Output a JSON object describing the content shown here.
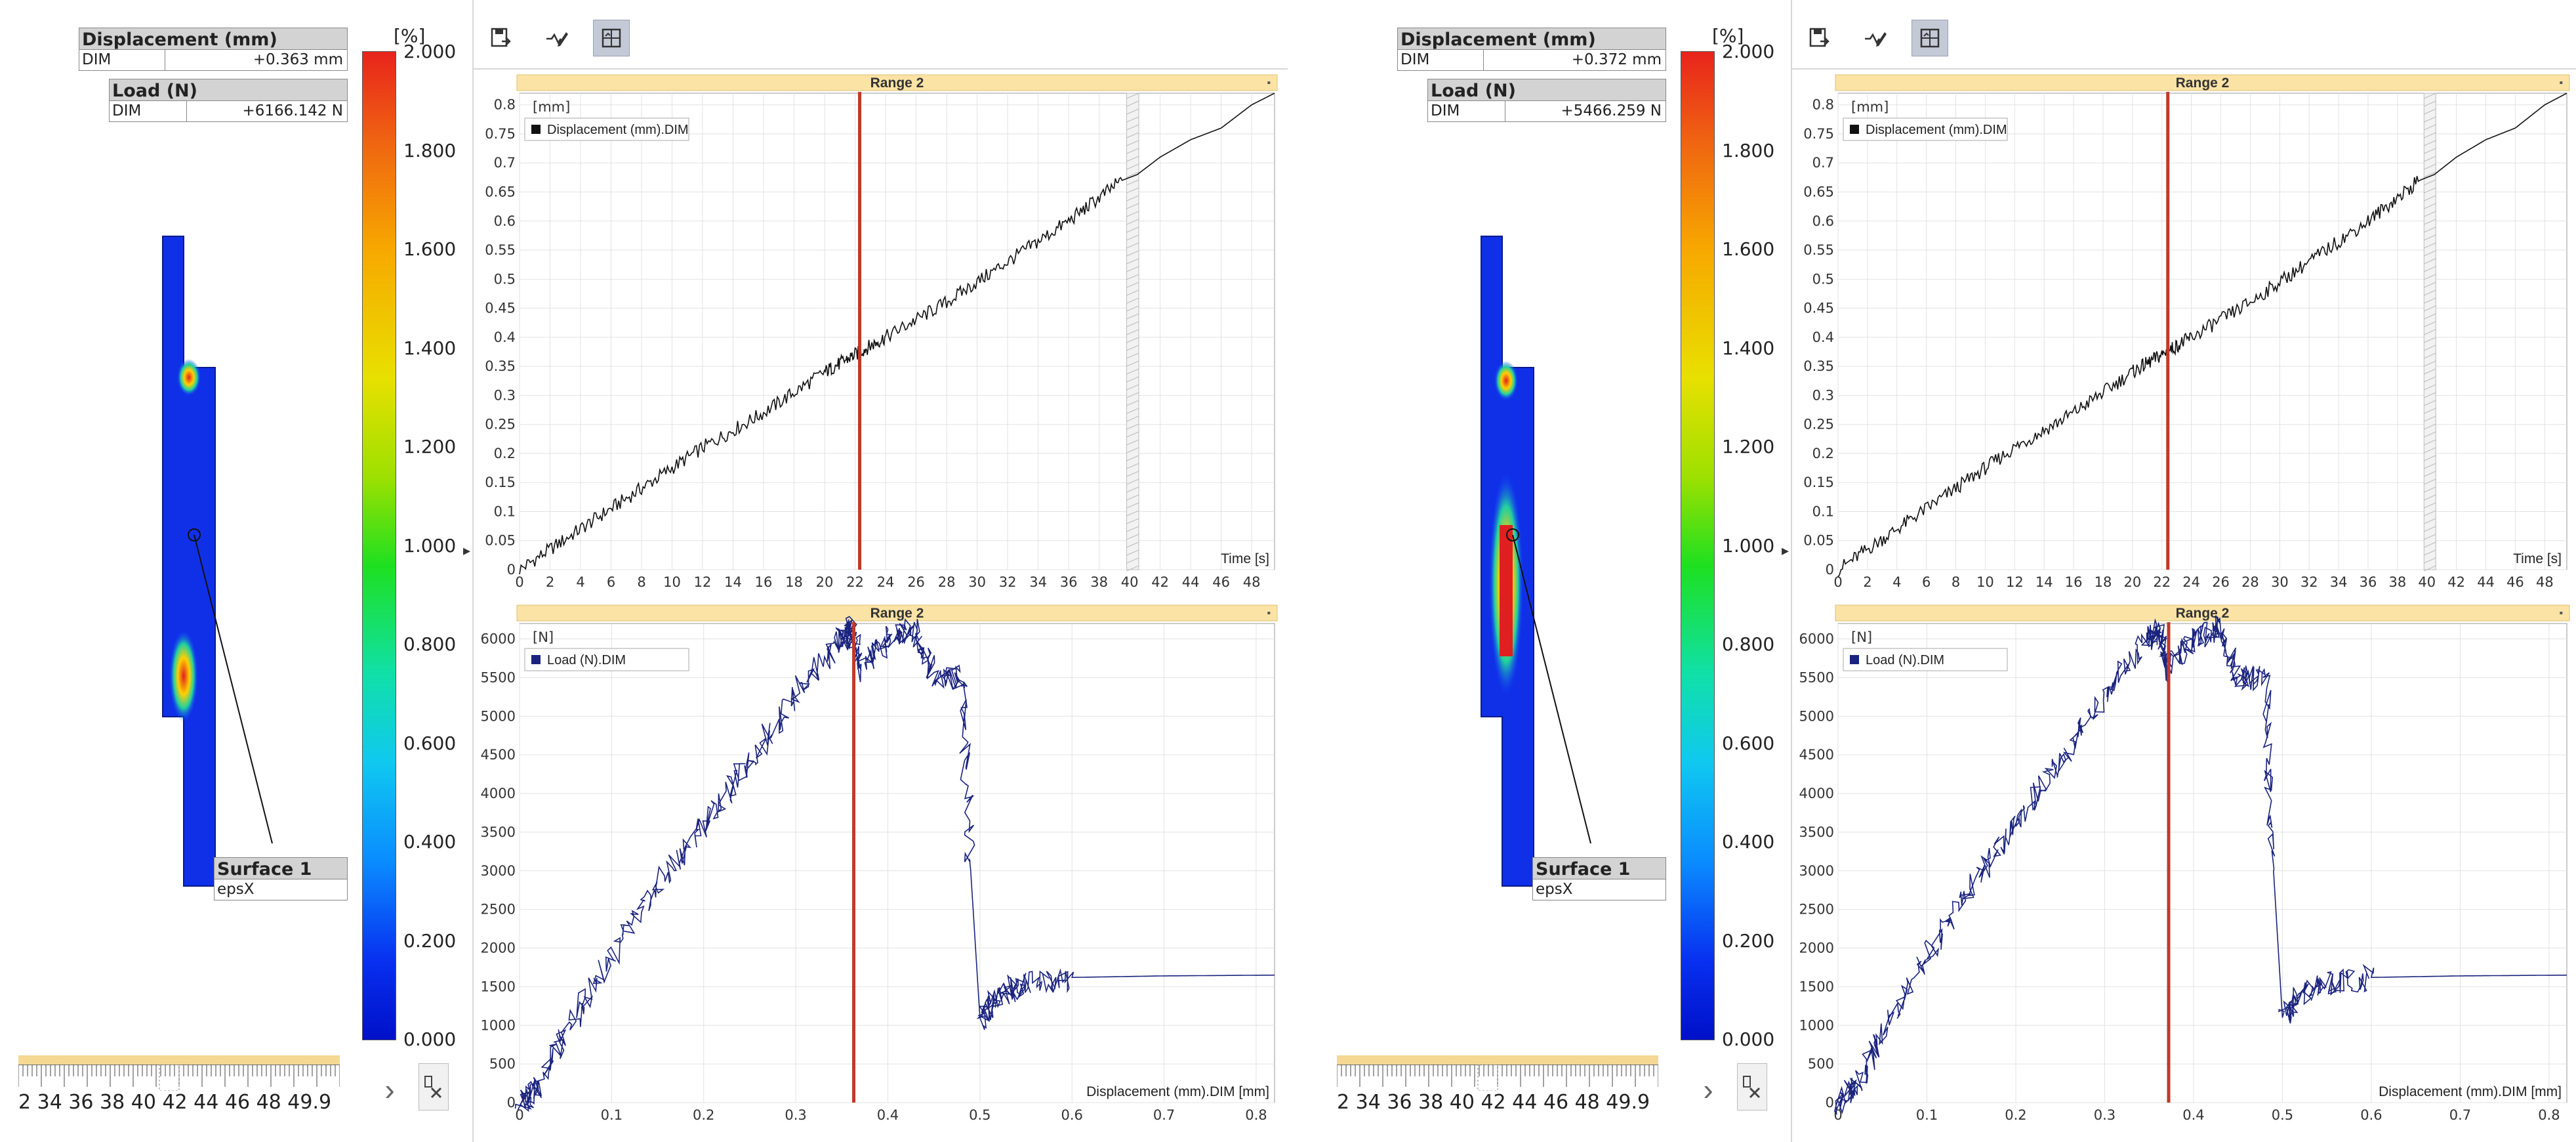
{
  "colorbar": {
    "unit": "[%]",
    "ticks": [
      "2.000",
      "1.800",
      "1.600",
      "1.400",
      "1.200",
      "1.000",
      "0.800",
      "0.600",
      "0.400",
      "0.200",
      "0.000"
    ]
  },
  "labels": {
    "surface_title": "Surface 1",
    "surface_sub": "epsX",
    "key": "DIM"
  },
  "panels": [
    {
      "displacement_title": "Displacement (mm)",
      "displacement_value": "+0.363 mm",
      "load_title": "Load (N)",
      "load_value": "+6166.142 N",
      "cursor_time": 22.3,
      "cursor_disp": 0.363
    },
    {
      "displacement_title": "Displacement (mm)",
      "displacement_value": "+0.372 mm",
      "load_title": "Load (N)",
      "load_value": "+5466.259 N",
      "cursor_time": 22.4,
      "cursor_disp": 0.372
    }
  ],
  "timeline": {
    "ticks_text": "2 34 36 38 40 42 44 46 48 49.9"
  },
  "top_chart": {
    "range_label": "Range 2",
    "unit_label": "[mm]",
    "legend": "Displacement (mm).DIM",
    "x_axis_label": "Time [s]"
  },
  "bottom_chart": {
    "range_label": "Range 2",
    "unit_label": "[N]",
    "legend": "Load (N).DIM",
    "x_axis_label": "Displacement (mm).DIM [mm]"
  },
  "colors": {
    "cursor": "#c0392b",
    "range_bar": "#fbe3a6",
    "disp_line": "#111111",
    "load_line": "#1a237e",
    "legend_load": "#1a237e"
  },
  "chart_data": [
    {
      "type": "line",
      "title": "Range 2",
      "xlabel": "Time [s]",
      "ylabel": "[mm]",
      "xlim": [
        0,
        49.5
      ],
      "ylim": [
        0,
        0.82
      ],
      "x_ticks": [
        0,
        2,
        4,
        6,
        8,
        10,
        12,
        14,
        16,
        18,
        20,
        22,
        24,
        26,
        28,
        30,
        32,
        34,
        36,
        38,
        40,
        42,
        44,
        46,
        48
      ],
      "y_ticks": [
        0,
        0.05,
        0.1,
        0.15,
        0.2,
        0.25,
        0.3,
        0.35,
        0.4,
        0.45,
        0.5,
        0.55,
        0.6,
        0.65,
        0.7,
        0.75,
        0.8
      ],
      "series": [
        {
          "name": "Displacement (mm).DIM",
          "x": [
            0,
            4,
            8,
            12,
            16,
            20,
            22,
            24,
            28,
            32,
            36,
            39.5,
            40.5,
            42,
            44,
            46,
            48,
            49.5
          ],
          "values": [
            0.0,
            0.07,
            0.14,
            0.21,
            0.27,
            0.34,
            0.37,
            0.4,
            0.46,
            0.53,
            0.6,
            0.67,
            0.68,
            0.71,
            0.74,
            0.76,
            0.8,
            0.82
          ]
        }
      ]
    },
    {
      "type": "line",
      "title": "Range 2",
      "xlabel": "Displacement (mm).DIM [mm]",
      "ylabel": "[N]",
      "xlim": [
        0,
        0.82
      ],
      "ylim": [
        0,
        6200
      ],
      "x_ticks": [
        0,
        0.1,
        0.2,
        0.3,
        0.4,
        0.5,
        0.6,
        0.7,
        0.8
      ],
      "y_ticks": [
        0,
        500,
        1000,
        1500,
        2000,
        2500,
        3000,
        3500,
        4000,
        4500,
        5000,
        5500,
        6000
      ],
      "series": [
        {
          "name": "Load (N).DIM",
          "x": [
            0,
            0.02,
            0.05,
            0.1,
            0.15,
            0.2,
            0.25,
            0.3,
            0.35,
            0.36,
            0.37,
            0.4,
            0.43,
            0.45,
            0.48,
            0.49,
            0.5,
            0.52,
            0.55,
            0.6,
            0.7,
            0.82
          ],
          "values": [
            0,
            200,
            900,
            1900,
            2800,
            3600,
            4400,
            5300,
            6000,
            6150,
            5600,
            6000,
            6150,
            5500,
            5500,
            3000,
            1100,
            1400,
            1550,
            1620,
            1640,
            1650
          ]
        }
      ]
    }
  ]
}
